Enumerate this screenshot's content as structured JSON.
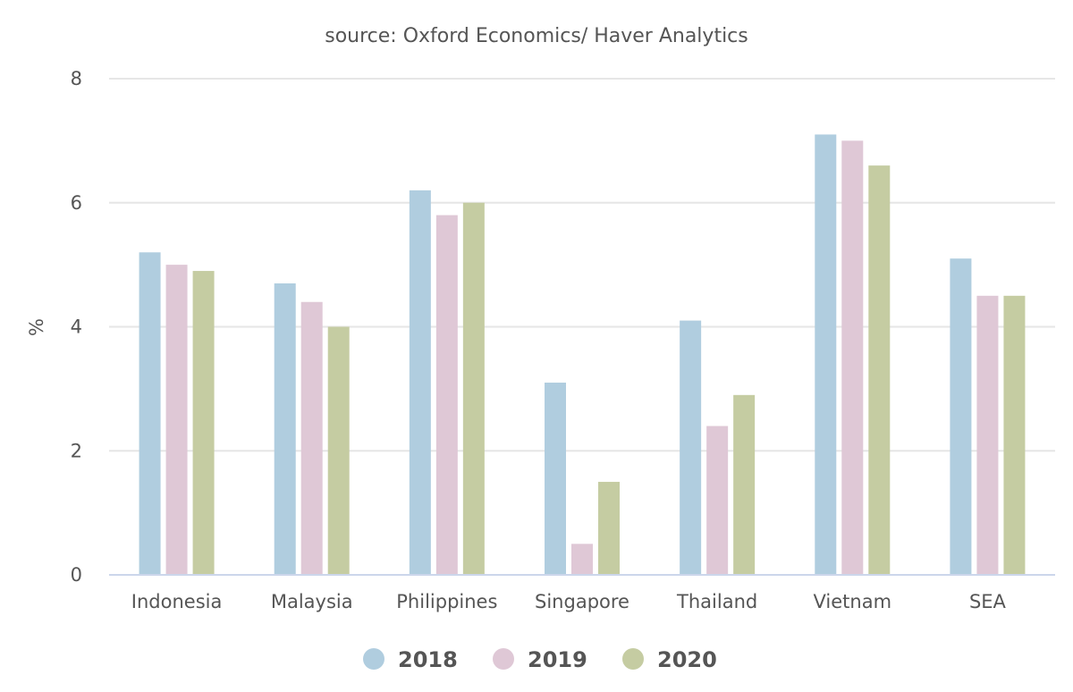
{
  "chart_data": {
    "type": "bar",
    "subtitle": "source: Oxford Economics/ Haver Analytics",
    "ylabel": "%",
    "xlabel": "",
    "ylim": [
      0,
      8
    ],
    "yticks": [
      0,
      2,
      4,
      6,
      8
    ],
    "grid": true,
    "legend_position": "bottom-center",
    "categories": [
      "Indonesia",
      "Malaysia",
      "Philippines",
      "Singapore",
      "Thailand",
      "Vietnam",
      "SEA"
    ],
    "series": [
      {
        "name": "2018",
        "color": "#b0cddf",
        "values": [
          5.2,
          4.7,
          6.2,
          3.1,
          4.1,
          7.1,
          5.1
        ]
      },
      {
        "name": "2019",
        "color": "#dfc8d6",
        "values": [
          5.0,
          4.4,
          5.8,
          0.5,
          2.4,
          7.0,
          4.5
        ]
      },
      {
        "name": "2020",
        "color": "#c5cca2",
        "values": [
          4.9,
          4.0,
          6.0,
          1.5,
          2.9,
          6.6,
          4.5
        ]
      }
    ]
  }
}
